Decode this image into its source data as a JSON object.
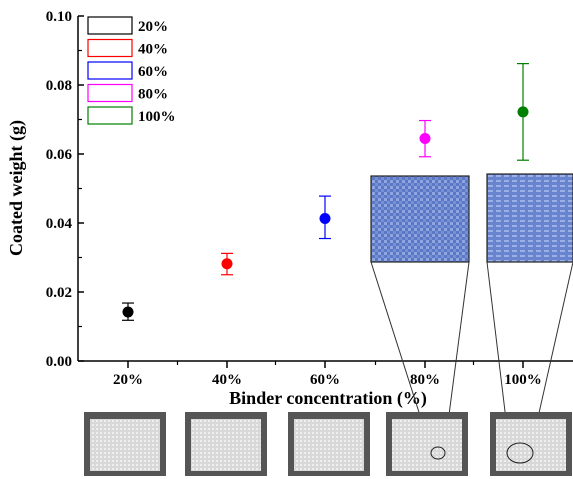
{
  "chart_data": {
    "type": "scatter",
    "xlabel": "Binder concentration (%)",
    "ylabel": "Coated weight (g)",
    "ylim": [
      0.0,
      0.1
    ],
    "yticks": [
      "0.00",
      "0.02",
      "0.04",
      "0.06",
      "0.08",
      "0.10"
    ],
    "categories": [
      "20%",
      "40%",
      "60%",
      "80%",
      "100%"
    ],
    "series": [
      {
        "name": "20%",
        "color": "#000000",
        "x": "20%",
        "y": 0.0142,
        "err_low": 0.0118,
        "err_high": 0.0168
      },
      {
        "name": "40%",
        "color": "#ff0000",
        "x": "40%",
        "y": 0.0282,
        "err_low": 0.025,
        "err_high": 0.0312
      },
      {
        "name": "60%",
        "color": "#0000ff",
        "x": "60%",
        "y": 0.0413,
        "err_low": 0.0355,
        "err_high": 0.0478
      },
      {
        "name": "80%",
        "color": "#ff00ff",
        "x": "80%",
        "y": 0.0645,
        "err_low": 0.0592,
        "err_high": 0.0697
      },
      {
        "name": "100%",
        "color": "#008000",
        "x": "100%",
        "y": 0.0722,
        "err_low": 0.0582,
        "err_high": 0.0862
      }
    ],
    "legend": {
      "placement": "top-left",
      "style": "open-rectangles"
    },
    "grid": false,
    "insets": [
      {
        "points_to": "80%",
        "content": "fabric-micrograph"
      },
      {
        "points_to": "100%",
        "content": "fabric-micrograph"
      }
    ],
    "sample_photos": [
      "20%",
      "40%",
      "60%",
      "80%",
      "100%"
    ]
  }
}
